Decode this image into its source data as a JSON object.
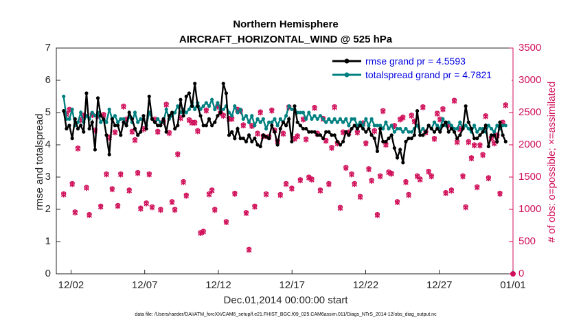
{
  "chart_data": {
    "type": "line",
    "title": "Northern Hemisphere",
    "subtitle": "AIRCRAFT_HORIZONTAL_WIND @ 525 hPa",
    "xlabel": "Dec.01,2014 00:00:00 start",
    "ylabel": "rmse and totalspread",
    "y2label": "# of obs: o=possible; ×=assimilated",
    "footnote": "data file: /Users/raeder/DAI/ATM_forcXX/CAM6_setup/f.e21.FHIST_BGC.f09_025.CAM6assim.011/Diags_NTrS_2014-12/obs_diag_output.nc",
    "xlim": [
      0.5,
      31.5
    ],
    "ylim": [
      0,
      7
    ],
    "y2lim": [
      0,
      3500
    ],
    "x_ticks": [
      1.5,
      6.5,
      11.5,
      16.5,
      21.5,
      26.5,
      31.5
    ],
    "x_tick_labels": [
      "12/02",
      "12/07",
      "12/12",
      "12/17",
      "12/22",
      "12/27",
      "01/01"
    ],
    "y_ticks": [
      0,
      1,
      2,
      3,
      4,
      5,
      6,
      7
    ],
    "y2_ticks": [
      0,
      500,
      1000,
      1500,
      2000,
      2500,
      3000,
      3500
    ],
    "legend": [
      "rmse grand pr = 4.5593",
      "totalspread grand pr = 4.7821"
    ],
    "series": [
      {
        "name": "rmse grand pr = 4.5593",
        "color": "#000000",
        "values": [
          5.05,
          4.5,
          4.6,
          4.2,
          4.8,
          4.5,
          4.6,
          4.4,
          5.6,
          4.5,
          4.7,
          3.85,
          5.45,
          4.9,
          4.8,
          4.3,
          3.7,
          4.8,
          4.6,
          4.6,
          4.3,
          4.7,
          4.6,
          5.0,
          4.8,
          4.5,
          4.3,
          4.4,
          4.9,
          4.5,
          5.5,
          4.8,
          4.7,
          4.6,
          4.6,
          4.8,
          4.4,
          4.9,
          5.0,
          4.5,
          4.6,
          5.4,
          4.9,
          5.5,
          5.6,
          5.2,
          5.9,
          5.2,
          4.9,
          4.6,
          4.6,
          4.8,
          4.6,
          4.7,
          4.9,
          5.0,
          5.9,
          5.6,
          4.3,
          4.4,
          4.2,
          4.5,
          4.2,
          4.2,
          4.1,
          4.3,
          4.1,
          4.2,
          4.0,
          3.95,
          4.3,
          4.25,
          4.2,
          4.6,
          4.4,
          4.0,
          4.5,
          4.7,
          4.6,
          4.8,
          4.1,
          5.2,
          4.7,
          4.6,
          4.5,
          4.5,
          4.4,
          4.4,
          4.4,
          4.3,
          4.3,
          4.2,
          4.4,
          4.4,
          4.3,
          4.3,
          4.1,
          4.0,
          4.1,
          4.4,
          4.3,
          4.5,
          4.6,
          4.5,
          4.6,
          4.5,
          4.4,
          4.5,
          4.3,
          4.2,
          3.8,
          4.5,
          4.1,
          4.1,
          4.2,
          4.3,
          3.9,
          3.6,
          3.85,
          3.45,
          4.1,
          4.2,
          4.2,
          4.3,
          5.05,
          4.3,
          4.3,
          4.4,
          4.6,
          4.5,
          4.4,
          4.5,
          4.4,
          4.6,
          4.7,
          4.4,
          4.5,
          4.4,
          4.2,
          4.3,
          4.5,
          5.2,
          4.7,
          4.5,
          4.2,
          4.2,
          4.3,
          4.4,
          4.6,
          3.95,
          4.3,
          4.3,
          4.1,
          4.7,
          4.3,
          4.1
        ]
      },
      {
        "name": "totalspread grand pr = 4.7821",
        "color": "#008080",
        "values": [
          5.5,
          4.8,
          4.8,
          5.1,
          4.6,
          4.7,
          5.0,
          4.7,
          4.9,
          4.8,
          5.0,
          4.9,
          5.0,
          4.7,
          4.8,
          4.7,
          5.1,
          4.8,
          4.9,
          4.7,
          4.8,
          4.8,
          4.6,
          4.9,
          4.7,
          5.0,
          4.7,
          4.8,
          4.8,
          4.6,
          5.0,
          4.8,
          4.7,
          4.8,
          4.7,
          4.7,
          5.1,
          4.8,
          4.9,
          5.0,
          5.2,
          5.0,
          5.1,
          5.0,
          5.1,
          5.3,
          5.1,
          5.3,
          5.1,
          5.2,
          5.3,
          5.2,
          5.4,
          5.1,
          5.3,
          5.1,
          5.1,
          5.2,
          5.0,
          4.9,
          5.2,
          5.0,
          5.1,
          4.8,
          4.9,
          4.7,
          4.9,
          4.6,
          4.8,
          4.7,
          4.8,
          4.5,
          4.7,
          4.7,
          4.8,
          4.6,
          4.8,
          4.7,
          4.9,
          5.2,
          5.1,
          5.1,
          5.0,
          5.0,
          5.0,
          4.8,
          5.0,
          4.8,
          4.9,
          4.8,
          4.9,
          4.8,
          4.7,
          4.8,
          4.7,
          4.8,
          4.7,
          4.8,
          4.7,
          4.8,
          4.6,
          4.8,
          4.8,
          4.6,
          4.7,
          4.6,
          4.8,
          4.6,
          4.8,
          4.6,
          4.6,
          4.6,
          4.5,
          4.7,
          4.5,
          4.6,
          4.4,
          4.5,
          4.5,
          4.4,
          4.5,
          4.4,
          4.4,
          4.5,
          4.6,
          4.4,
          4.5,
          4.4,
          4.6,
          4.5,
          4.7,
          4.6,
          4.5,
          4.8,
          4.6,
          4.7,
          4.6,
          4.5,
          4.5,
          4.7,
          4.5,
          4.6,
          4.5,
          4.4,
          4.6,
          4.4,
          4.5,
          4.5,
          4.4,
          4.6,
          4.5,
          4.4,
          4.6,
          4.5,
          4.6,
          4.6
        ]
      }
    ],
    "obs_counts": {
      "color": "#d0105a",
      "possible": [
        1240,
        2480,
        2550,
        1400,
        960,
        1950,
        2390,
        2460,
        1340,
        920,
        2470,
        2230,
        2450,
        1050,
        2470,
        1550,
        2120,
        1320,
        2200,
        1060,
        1550,
        2600,
        2400,
        1300,
        2210,
        2080,
        1570,
        1020,
        2250,
        1100,
        1550,
        1040,
        2400,
        2210,
        1000,
        2360,
        2630,
        2190,
        1120,
        1000,
        1860,
        2420,
        1430,
        1220,
        2390,
        2350,
        2350,
        2220,
        640,
        660,
        2540,
        1240,
        1300,
        1000,
        2600,
        2500,
        2460,
        810,
        2410,
        2410,
        1250,
        2550,
        2530,
        2310,
        950,
        380,
        2300,
        1050,
        2180,
        2510,
        2140,
        1240,
        2130,
        2540,
        2230,
        2060,
        1230,
        2180,
        1400,
        2590,
        1330,
        2100,
        2140,
        1460,
        2400,
        2090,
        1500,
        1470,
        2580,
        2180,
        1300,
        2410,
        2070,
        1400,
        1960,
        2590,
        2030,
        1030,
        2200,
        1650,
        2200,
        1550,
        1400,
        2200,
        1200,
        2340,
        2030,
        1630,
        1450,
        2220,
        920,
        1520,
        2530,
        2010,
        1580,
        1560,
        2300,
        1120,
        2400,
        2430,
        1430,
        1230,
        2460,
        2370,
        1520,
        1470,
        2590,
        2200,
        1590,
        1520,
        2100,
        2490,
        2400,
        2560,
        1260,
        2310,
        1300,
        2690,
        2050,
        2250,
        1520,
        1040,
        2050,
        1800,
        2000,
        1350,
        2000,
        1850,
        2450,
        1490,
        2110,
        2030,
        2150,
        1250,
        2350,
        2620
      ]
    }
  }
}
